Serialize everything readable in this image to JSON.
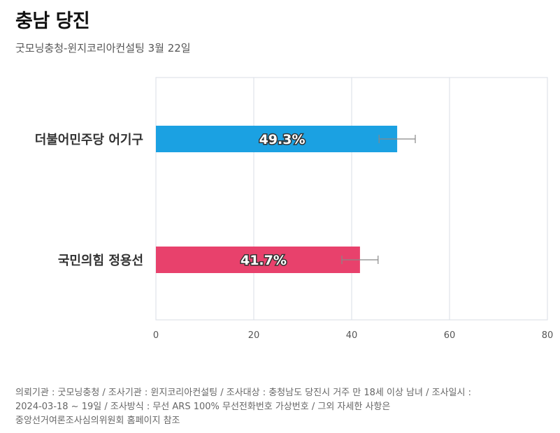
{
  "header": {
    "title": "충남 당진",
    "subtitle": "굿모닝충청-윈지코리아컨설팅 3월 22일"
  },
  "chart_data": {
    "type": "bar",
    "orientation": "horizontal",
    "categories": [
      "더불어민주당 어기구",
      "국민의힘 정용선"
    ],
    "values": [
      49.3,
      41.7
    ],
    "value_labels": [
      "49.3%",
      "41.7%"
    ],
    "error_margin": 3.7,
    "xlim": [
      0,
      80
    ],
    "xticks": [
      0,
      20,
      40,
      60,
      80
    ],
    "grid": true,
    "colors": [
      "#1ba1e2",
      "#e8416c"
    ]
  },
  "footnote": {
    "lines": [
      "의뢰기관 : 굿모닝충청 / 조사기관 : 윈지코리아컨설팅 / 조사대상 : 충청남도 당진시 거주 만 18세 이상 남녀 / 조사일시 :",
      "2024-03-18 ~ 19일 / 조사방식 : 무선 ARS 100% 무선전화번호 가상번호 / 그외 자세한 사항은",
      "중앙선거여론조사심의위원회 홈페이지 참조"
    ]
  }
}
